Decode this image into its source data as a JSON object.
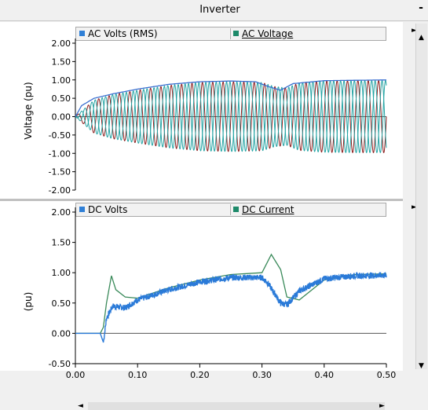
{
  "window": {
    "title": "Inverter",
    "minimize_symbol": "-"
  },
  "top_chart": {
    "ylabel": "Voltage (pu)",
    "legend": [
      {
        "label": "AC Volts (RMS)",
        "color": "#2f7fd6"
      },
      {
        "label": "AC Voltage",
        "color": "#1e8a6a"
      }
    ],
    "yticks": [
      "2.00",
      "1.50",
      "1.00",
      "0.50",
      "0.00",
      "-0.50",
      "-1.00",
      "-1.50",
      "-2.00"
    ]
  },
  "bottom_chart": {
    "ylabel": "(pu)",
    "legend": [
      {
        "label": "DC Volts",
        "color": "#2f7fd6"
      },
      {
        "label": "DC Current",
        "color": "#1e8a6a"
      }
    ],
    "yticks": [
      "2.00",
      "1.50",
      "1.00",
      "0.50",
      "0.00",
      "-0.50"
    ]
  },
  "xticks": [
    "0.00",
    "0.10",
    "0.20",
    "0.30",
    "0.40",
    "0.50"
  ],
  "chart_data": [
    {
      "type": "line",
      "ylabel": "Voltage (pu)",
      "ylim": [
        -2.0,
        2.0
      ],
      "xlim": [
        0.0,
        0.5
      ],
      "series": [
        {
          "name": "AC Volts (RMS)",
          "color": "#3a6fd0",
          "x": [
            0.0,
            0.01,
            0.03,
            0.06,
            0.1,
            0.15,
            0.2,
            0.25,
            0.29,
            0.31,
            0.33,
            0.35,
            0.4,
            0.45,
            0.5
          ],
          "y": [
            0.0,
            0.3,
            0.5,
            0.62,
            0.75,
            0.88,
            0.95,
            0.97,
            0.95,
            0.82,
            0.72,
            0.9,
            0.98,
            0.99,
            1.0
          ]
        },
        {
          "name": "AC Voltage",
          "color": "#23a3a3",
          "x": [
            0.0,
            0.03,
            0.06,
            0.1,
            0.15,
            0.2,
            0.25,
            0.3,
            0.32,
            0.34,
            0.36,
            0.4,
            0.45,
            0.5
          ],
          "y": [
            0.0,
            0.45,
            0.6,
            0.72,
            0.85,
            0.93,
            0.95,
            0.93,
            0.82,
            0.78,
            0.92,
            0.97,
            0.98,
            0.98
          ]
        }
      ]
    },
    {
      "type": "line",
      "ylabel": "(pu)",
      "ylim": [
        -0.5,
        2.0
      ],
      "xlim": [
        0.0,
        0.5
      ],
      "series": [
        {
          "name": "DC Volts",
          "color": "#2a7ad8",
          "x": [
            0.0,
            0.04,
            0.045,
            0.05,
            0.06,
            0.08,
            0.1,
            0.15,
            0.2,
            0.25,
            0.3,
            0.31,
            0.33,
            0.34,
            0.36,
            0.4,
            0.45,
            0.5
          ],
          "y": [
            0.0,
            0.0,
            -0.15,
            0.25,
            0.45,
            0.42,
            0.55,
            0.72,
            0.85,
            0.92,
            0.92,
            0.82,
            0.5,
            0.47,
            0.7,
            0.9,
            0.95,
            0.96
          ]
        },
        {
          "name": "DC Current",
          "color": "#3a8a5a",
          "x": [
            0.0,
            0.04,
            0.045,
            0.05,
            0.058,
            0.065,
            0.08,
            0.1,
            0.15,
            0.2,
            0.25,
            0.3,
            0.315,
            0.33,
            0.34,
            0.36,
            0.4,
            0.45,
            0.5
          ],
          "y": [
            0.0,
            0.0,
            0.1,
            0.5,
            0.95,
            0.72,
            0.6,
            0.58,
            0.75,
            0.88,
            0.97,
            1.0,
            1.3,
            1.05,
            0.6,
            0.55,
            0.88,
            0.97,
            0.98
          ]
        }
      ]
    }
  ]
}
